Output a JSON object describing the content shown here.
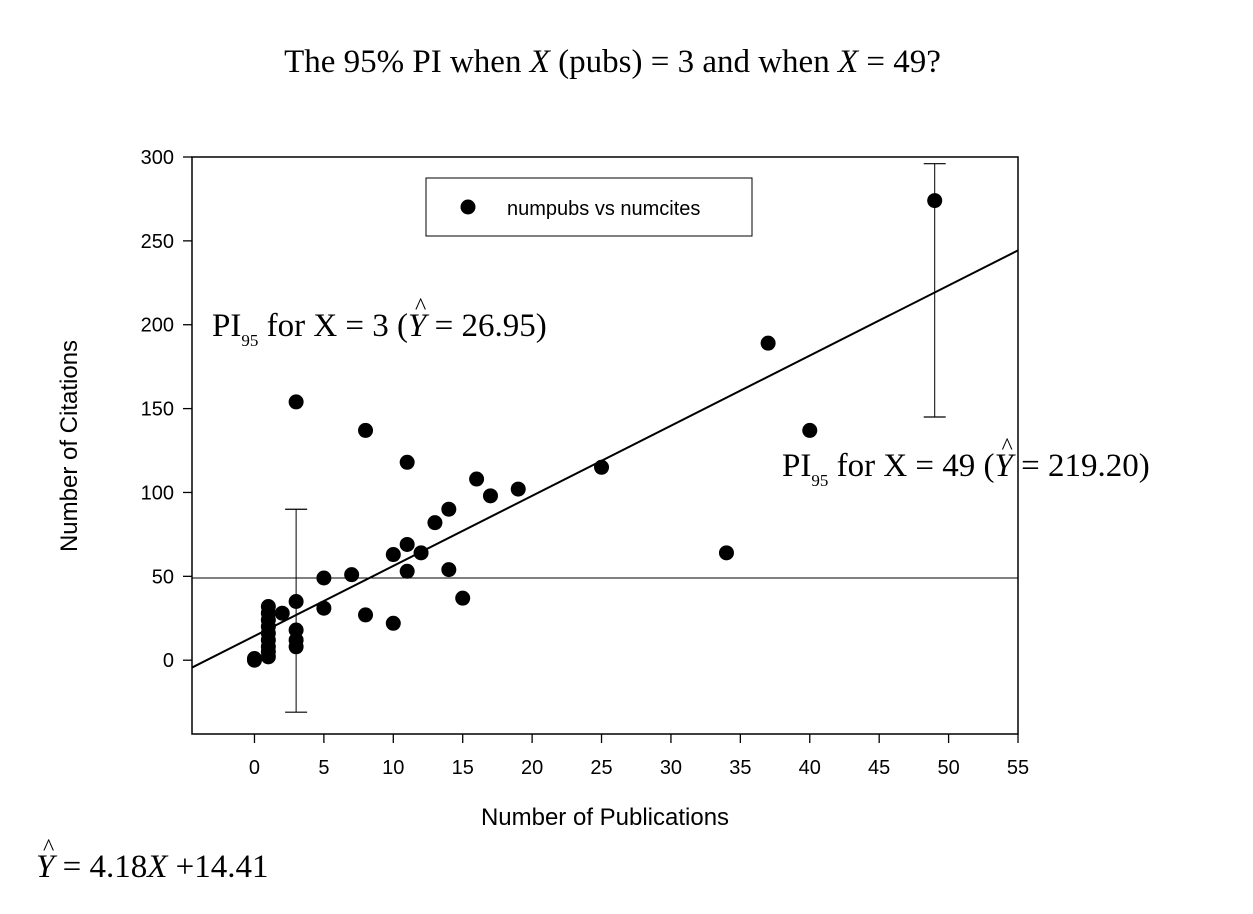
{
  "title": {
    "prefix": "The 95% PI when ",
    "var1": "X",
    "mid1": " (pubs) = 3 and when ",
    "var2": "X",
    "suffix": " = 49?"
  },
  "chart_data": {
    "type": "scatter",
    "xlabel": "Number of Publications",
    "ylabel": "Number of Citations",
    "xlim": [
      -4.5,
      55
    ],
    "ylim": [
      -44,
      300
    ],
    "xticks": [
      0,
      5,
      10,
      15,
      20,
      25,
      30,
      35,
      40,
      45,
      50,
      55
    ],
    "yticks": [
      0,
      50,
      100,
      150,
      200,
      250,
      300
    ],
    "grid": false,
    "legend": {
      "position": "top-center",
      "entries": [
        "numpubs vs numcites"
      ]
    },
    "series": [
      {
        "name": "numpubs vs numcites",
        "marker": "filled-circle",
        "color": "#000000",
        "points": [
          [
            0,
            0
          ],
          [
            0,
            1
          ],
          [
            1,
            32
          ],
          [
            1,
            28
          ],
          [
            1,
            24
          ],
          [
            1,
            20
          ],
          [
            1,
            16
          ],
          [
            1,
            12
          ],
          [
            1,
            8
          ],
          [
            1,
            5
          ],
          [
            1,
            2
          ],
          [
            2,
            28
          ],
          [
            3,
            154
          ],
          [
            3,
            35
          ],
          [
            3,
            18
          ],
          [
            3,
            12
          ],
          [
            3,
            8
          ],
          [
            5,
            49
          ],
          [
            5,
            31
          ],
          [
            7,
            51
          ],
          [
            8,
            137
          ],
          [
            8,
            27
          ],
          [
            10,
            63
          ],
          [
            10,
            22
          ],
          [
            11,
            118
          ],
          [
            11,
            69
          ],
          [
            11,
            53
          ],
          [
            12,
            64
          ],
          [
            13,
            82
          ],
          [
            14,
            90
          ],
          [
            14,
            54
          ],
          [
            15,
            37
          ],
          [
            16,
            108
          ],
          [
            17,
            98
          ],
          [
            19,
            102
          ],
          [
            25,
            115
          ],
          [
            34,
            64
          ],
          [
            37,
            189
          ],
          [
            40,
            137
          ],
          [
            49,
            274
          ]
        ]
      }
    ],
    "regression_line": {
      "slope": 4.18,
      "intercept": 14.41
    },
    "reference_line_y": 49,
    "prediction_intervals": [
      {
        "x": 3,
        "low": -31,
        "high": 90
      },
      {
        "x": 49,
        "low": 145,
        "high": 296
      }
    ]
  },
  "annotations": {
    "pi3": {
      "pi": "PI",
      "sub": "95",
      "mid": " for X = 3 (",
      "yhat": "Y",
      "rest": " = 26.95)"
    },
    "pi49": {
      "pi": "PI",
      "sub": "95",
      "mid": " for X = 49 (",
      "yhat": "Y",
      "rest": " = 219.20)"
    },
    "equation": {
      "yhat": "Y",
      "rest_a": " = 4.18",
      "var": "X",
      "rest_b": " +14.41"
    },
    "hat_symbol": "^"
  }
}
